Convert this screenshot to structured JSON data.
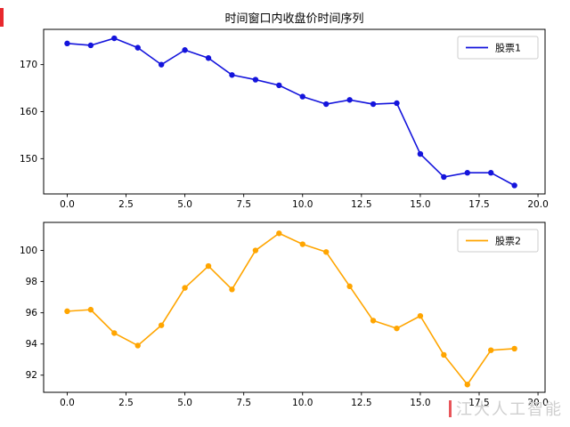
{
  "page": {
    "title": "时间窗口内收盘价时间序列",
    "watermark": "江大人工智能"
  },
  "chart_data": [
    {
      "type": "line",
      "title": "时间窗口内收盘价时间序列",
      "x": [
        0,
        1,
        2,
        3,
        4,
        5,
        6,
        7,
        8,
        9,
        10,
        11,
        12,
        13,
        14,
        15,
        16,
        17,
        18,
        19
      ],
      "series": [
        {
          "name": "股票1",
          "color": "#1414dc",
          "marker": "o",
          "values": [
            174.5,
            174.1,
            175.6,
            173.6,
            170.0,
            173.1,
            171.4,
            167.8,
            166.8,
            165.6,
            163.2,
            161.6,
            162.5,
            161.6,
            161.8,
            151.0,
            146.1,
            147.0,
            147.0,
            144.3
          ]
        }
      ],
      "xlim": [
        -1,
        20.3
      ],
      "ylim": [
        142.5,
        177.5
      ],
      "xticks": [
        0,
        2.5,
        5,
        7.5,
        10,
        12.5,
        15,
        17.5,
        20
      ],
      "xtick_labels": [
        "0.0",
        "2.5",
        "5.0",
        "7.5",
        "10.0",
        "12.5",
        "15.0",
        "17.5",
        "20.0"
      ],
      "yticks": [
        150,
        160,
        170
      ],
      "ytick_labels": [
        "150",
        "160",
        "170"
      ],
      "legend": {
        "label": "股票1",
        "position": "upper right"
      },
      "grid": false
    },
    {
      "type": "line",
      "title": "",
      "x": [
        0,
        1,
        2,
        3,
        4,
        5,
        6,
        7,
        8,
        9,
        10,
        11,
        12,
        13,
        14,
        15,
        16,
        17,
        18,
        19
      ],
      "series": [
        {
          "name": "股票2",
          "color": "#ffa500",
          "marker": "o",
          "values": [
            96.1,
            96.2,
            94.7,
            93.9,
            95.2,
            97.6,
            99.0,
            97.5,
            100.0,
            101.1,
            100.4,
            99.9,
            97.7,
            95.5,
            95.0,
            95.8,
            93.3,
            91.4,
            93.6,
            93.7
          ]
        }
      ],
      "xlim": [
        -1,
        20.3
      ],
      "ylim": [
        90.9,
        101.8
      ],
      "xticks": [
        0,
        2.5,
        5,
        7.5,
        10,
        12.5,
        15,
        17.5,
        20
      ],
      "xtick_labels": [
        "0.0",
        "2.5",
        "5.0",
        "7.5",
        "10.0",
        "12.5",
        "15.0",
        "17.5",
        "20.0"
      ],
      "yticks": [
        92,
        94,
        96,
        98,
        100
      ],
      "ytick_labels": [
        "92",
        "94",
        "96",
        "98",
        "100"
      ],
      "legend": {
        "label": "股票2",
        "position": "upper right"
      },
      "grid": false
    }
  ]
}
